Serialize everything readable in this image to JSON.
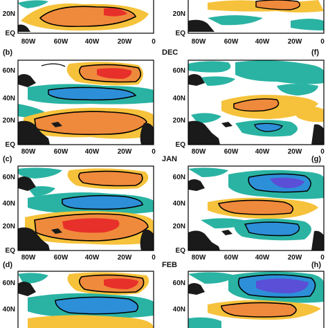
{
  "figure": {
    "x_ticks": [
      "80W",
      "60W",
      "40W",
      "20W",
      "0"
    ],
    "months": [
      "DEC",
      "JAN",
      "FEB"
    ],
    "panels": [
      {
        "tag": "",
        "month": "",
        "y_ticks": [
          "20N",
          "EQ"
        ]
      },
      {
        "tag": "",
        "month": "",
        "y_ticks": [
          "20N",
          "EQ"
        ]
      },
      {
        "tag": "(b)",
        "month": "",
        "y_ticks": [
          "60N",
          "40N",
          "20N",
          "EQ"
        ]
      },
      {
        "tag": "(f)",
        "month": "DEC",
        "y_ticks": [
          "60N",
          "40N",
          "20N",
          "EQ"
        ]
      },
      {
        "tag": "(c)",
        "month": "",
        "y_ticks": [
          "60N",
          "40N",
          "20N",
          "EQ"
        ]
      },
      {
        "tag": "(g)",
        "month": "JAN",
        "y_ticks": [
          "60N",
          "40N",
          "20N",
          "EQ"
        ]
      },
      {
        "tag": "(d)",
        "month": "",
        "y_ticks": [
          "60N",
          "40N"
        ]
      },
      {
        "tag": "(h)",
        "month": "FEB",
        "y_ticks": [
          "60N",
          "40N"
        ]
      }
    ],
    "colors": {
      "strong_positive": "#e8302a",
      "positive": "#ef8a3c",
      "weak_positive": "#f6c23b",
      "weak_negative": "#2ab3a3",
      "negative": "#2d8fd8",
      "strong_negative": "#5a4fd6",
      "land": "#1a1a1a",
      "frame": "#000000"
    }
  }
}
